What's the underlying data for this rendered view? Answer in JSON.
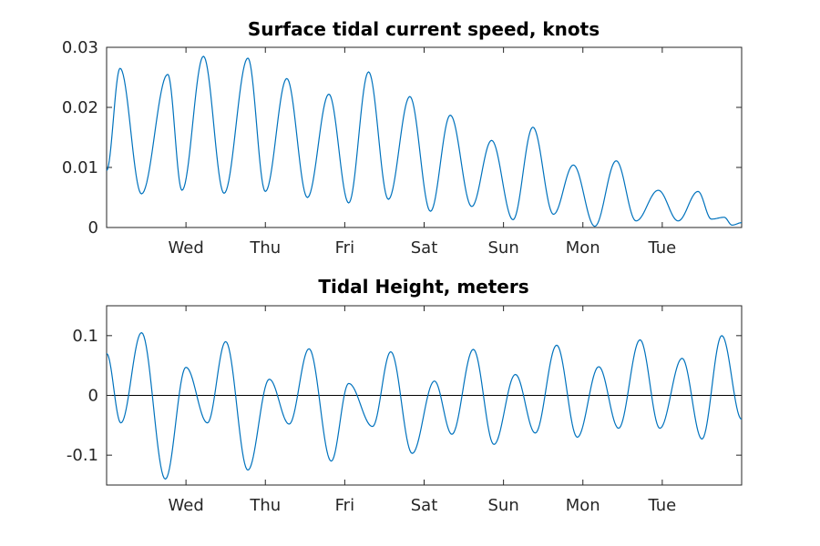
{
  "colors": {
    "series": "#0072BD",
    "axis": "#262626",
    "zero_line": "#000000"
  },
  "chart_data": [
    {
      "type": "line",
      "title": "Surface tidal current speed, knots",
      "xlabel": "",
      "ylabel": "",
      "x_unit": "days",
      "xlim": [
        0,
        8
      ],
      "ylim": [
        0,
        0.03
      ],
      "yticks": [
        0,
        0.01,
        0.02,
        0.03
      ],
      "ytick_labels": [
        "0",
        "0.01",
        "0.02",
        "0.03"
      ],
      "xticks": [
        1,
        2,
        3,
        4,
        5,
        6,
        7
      ],
      "xtick_labels": [
        "Wed",
        "Thu",
        "Fri",
        "Sat",
        "Sun",
        "Mon",
        "Tue"
      ],
      "grid": false,
      "series": [
        {
          "x": [
            0,
            0.17,
            0.44,
            0.77,
            0.95,
            1.22,
            1.48,
            1.78,
            2.0,
            2.27,
            2.53,
            2.8,
            3.05,
            3.3,
            3.55,
            3.82,
            4.08,
            4.33,
            4.6,
            4.85,
            5.12,
            5.37,
            5.63,
            5.88,
            6.15,
            6.42,
            6.67,
            6.95,
            7.2,
            7.45,
            7.62,
            7.78,
            7.88,
            8.0
          ],
          "y": [
            0.0095,
            0.0265,
            0.0056,
            0.0255,
            0.0062,
            0.0285,
            0.0057,
            0.0282,
            0.006,
            0.0248,
            0.005,
            0.0222,
            0.0041,
            0.0259,
            0.0047,
            0.0218,
            0.0027,
            0.0187,
            0.0035,
            0.0145,
            0.0013,
            0.0167,
            0.0022,
            0.0104,
            0.0002,
            0.0111,
            0.0011,
            0.0062,
            0.0011,
            0.006,
            0.0014,
            0.0017,
            0.0004,
            0.0008
          ]
        }
      ]
    },
    {
      "type": "line",
      "title": "Tidal Height, meters",
      "xlabel": "",
      "ylabel": "",
      "x_unit": "days",
      "xlim": [
        0,
        8
      ],
      "ylim": [
        -0.15,
        0.15
      ],
      "yticks": [
        -0.1,
        0,
        0.1
      ],
      "ytick_labels": [
        "-0.1",
        "0",
        "0.1"
      ],
      "xticks": [
        1,
        2,
        3,
        4,
        5,
        6,
        7
      ],
      "xtick_labels": [
        "Wed",
        "Thu",
        "Fri",
        "Sat",
        "Sun",
        "Mon",
        "Tue"
      ],
      "grid": false,
      "zero_line": true,
      "series": [
        {
          "x": [
            0,
            0.18,
            0.44,
            0.74,
            1.0,
            1.27,
            1.5,
            1.78,
            2.05,
            2.3,
            2.55,
            2.83,
            3.05,
            3.35,
            3.58,
            3.85,
            4.13,
            4.35,
            4.62,
            4.88,
            5.15,
            5.4,
            5.67,
            5.93,
            6.2,
            6.45,
            6.72,
            6.97,
            7.25,
            7.5,
            7.75,
            8.0
          ],
          "y": [
            0.07,
            -0.046,
            0.105,
            -0.14,
            0.047,
            -0.046,
            0.09,
            -0.125,
            0.027,
            -0.048,
            0.078,
            -0.11,
            0.02,
            -0.052,
            0.073,
            -0.097,
            0.024,
            -0.065,
            0.077,
            -0.082,
            0.035,
            -0.063,
            0.084,
            -0.07,
            0.048,
            -0.055,
            0.093,
            -0.055,
            0.062,
            -0.073,
            0.1,
            -0.04
          ]
        }
      ]
    }
  ]
}
